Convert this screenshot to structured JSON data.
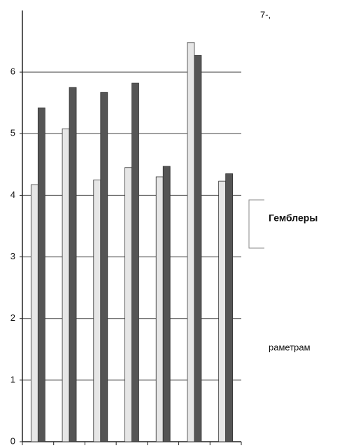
{
  "chart_data": {
    "type": "bar",
    "categories": [
      null,
      null,
      null,
      null,
      null,
      null,
      null
    ],
    "series": [
      {
        "color": "#e6e6e6",
        "values": [
          4.17,
          5.08,
          4.25,
          4.45,
          4.3,
          6.48,
          4.23
        ]
      },
      {
        "color": "#555555",
        "values": [
          5.42,
          5.75,
          5.67,
          5.82,
          4.47,
          6.27,
          4.35
        ]
      }
    ],
    "ylim": [
      0,
      7
    ],
    "yticks": [
      0,
      1,
      2,
      3,
      4,
      5,
      6
    ],
    "grid": true,
    "legend": {
      "label": "Гемблеры"
    },
    "annotations": [
      "7-,",
      "раметрам"
    ]
  }
}
